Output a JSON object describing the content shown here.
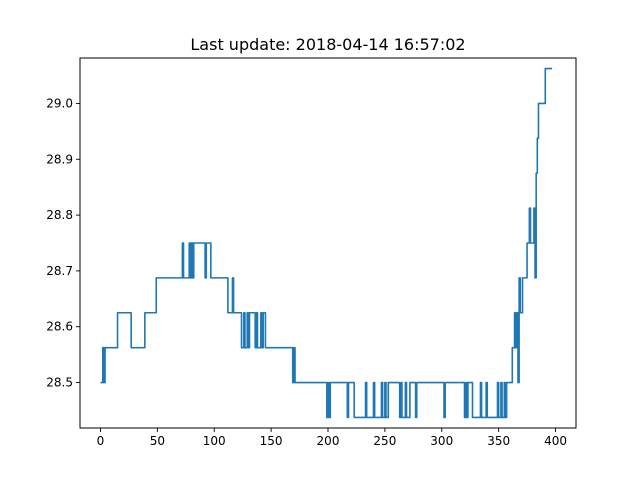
{
  "chart_data": {
    "type": "line",
    "title": "Last update: 2018-04-14 16:57:02",
    "xlabel": "",
    "ylabel": "",
    "xlim": [
      -18,
      418
    ],
    "ylim": [
      28.4185,
      29.0815
    ],
    "xticks": [
      0,
      50,
      100,
      150,
      200,
      250,
      300,
      350,
      400
    ],
    "yticks": [
      28.5,
      28.6,
      28.7,
      28.8,
      28.9,
      29.0
    ],
    "ytick_labels": [
      "28.5",
      "28.6",
      "28.7",
      "28.8",
      "28.9",
      "29.0"
    ],
    "grid": false,
    "series": [
      {
        "color": "#1f77b4",
        "points": [
          [
            0,
            28.5
          ],
          [
            2,
            28.5
          ],
          [
            2,
            28.5625
          ],
          [
            3,
            28.5625
          ],
          [
            3,
            28.5
          ],
          [
            4,
            28.5
          ],
          [
            4,
            28.5625
          ],
          [
            15,
            28.5625
          ],
          [
            15,
            28.625
          ],
          [
            27,
            28.625
          ],
          [
            27,
            28.5625
          ],
          [
            39,
            28.5625
          ],
          [
            39,
            28.625
          ],
          [
            49,
            28.625
          ],
          [
            49,
            28.6875
          ],
          [
            72,
            28.6875
          ],
          [
            72,
            28.75
          ],
          [
            73,
            28.75
          ],
          [
            73,
            28.6875
          ],
          [
            78,
            28.6875
          ],
          [
            78,
            28.75
          ],
          [
            79,
            28.75
          ],
          [
            79,
            28.6875
          ],
          [
            80,
            28.6875
          ],
          [
            80,
            28.75
          ],
          [
            81,
            28.75
          ],
          [
            81,
            28.6875
          ],
          [
            82,
            28.6875
          ],
          [
            82,
            28.75
          ],
          [
            92,
            28.75
          ],
          [
            92,
            28.6875
          ],
          [
            93,
            28.6875
          ],
          [
            93,
            28.75
          ],
          [
            97,
            28.75
          ],
          [
            97,
            28.6875
          ],
          [
            112,
            28.6875
          ],
          [
            112,
            28.625
          ],
          [
            116,
            28.625
          ],
          [
            116,
            28.6875
          ],
          [
            117,
            28.6875
          ],
          [
            117,
            28.625
          ],
          [
            124,
            28.625
          ],
          [
            124,
            28.5625
          ],
          [
            126,
            28.5625
          ],
          [
            126,
            28.625
          ],
          [
            127,
            28.625
          ],
          [
            127,
            28.5625
          ],
          [
            129,
            28.5625
          ],
          [
            129,
            28.625
          ],
          [
            130,
            28.625
          ],
          [
            130,
            28.5625
          ],
          [
            131,
            28.5625
          ],
          [
            131,
            28.625
          ],
          [
            136,
            28.625
          ],
          [
            136,
            28.5625
          ],
          [
            137,
            28.5625
          ],
          [
            137,
            28.625
          ],
          [
            138,
            28.625
          ],
          [
            138,
            28.5625
          ],
          [
            141,
            28.5625
          ],
          [
            141,
            28.625
          ],
          [
            142,
            28.625
          ],
          [
            142,
            28.5625
          ],
          [
            143,
            28.5625
          ],
          [
            143,
            28.625
          ],
          [
            145,
            28.625
          ],
          [
            145,
            28.5625
          ],
          [
            169,
            28.5625
          ],
          [
            169,
            28.5
          ],
          [
            170,
            28.5
          ],
          [
            170,
            28.5625
          ],
          [
            171,
            28.5625
          ],
          [
            171,
            28.5
          ],
          [
            199,
            28.5
          ],
          [
            199,
            28.4375
          ],
          [
            200,
            28.4375
          ],
          [
            200,
            28.5
          ],
          [
            201,
            28.5
          ],
          [
            201,
            28.4375
          ],
          [
            202,
            28.4375
          ],
          [
            202,
            28.5
          ],
          [
            217,
            28.5
          ],
          [
            217,
            28.4375
          ],
          [
            218,
            28.4375
          ],
          [
            218,
            28.5
          ],
          [
            223,
            28.5
          ],
          [
            223,
            28.4375
          ],
          [
            233,
            28.4375
          ],
          [
            233,
            28.5
          ],
          [
            234,
            28.5
          ],
          [
            234,
            28.4375
          ],
          [
            240,
            28.4375
          ],
          [
            240,
            28.5
          ],
          [
            241,
            28.5
          ],
          [
            241,
            28.4375
          ],
          [
            247,
            28.4375
          ],
          [
            247,
            28.5
          ],
          [
            248,
            28.5
          ],
          [
            248,
            28.4375
          ],
          [
            250,
            28.4375
          ],
          [
            250,
            28.5
          ],
          [
            251,
            28.5
          ],
          [
            251,
            28.4375
          ],
          [
            253,
            28.4375
          ],
          [
            253,
            28.5
          ],
          [
            263,
            28.5
          ],
          [
            263,
            28.4375
          ],
          [
            264,
            28.4375
          ],
          [
            264,
            28.5
          ],
          [
            265,
            28.5
          ],
          [
            265,
            28.4375
          ],
          [
            268,
            28.4375
          ],
          [
            268,
            28.5
          ],
          [
            269,
            28.5
          ],
          [
            269,
            28.4375
          ],
          [
            272,
            28.4375
          ],
          [
            272,
            28.5
          ],
          [
            277,
            28.5
          ],
          [
            277,
            28.4375
          ],
          [
            278,
            28.4375
          ],
          [
            278,
            28.5
          ],
          [
            302,
            28.5
          ],
          [
            302,
            28.4375
          ],
          [
            303,
            28.4375
          ],
          [
            303,
            28.5
          ],
          [
            320,
            28.5
          ],
          [
            320,
            28.4375
          ],
          [
            321,
            28.4375
          ],
          [
            321,
            28.5
          ],
          [
            322,
            28.5
          ],
          [
            322,
            28.4375
          ],
          [
            323,
            28.4375
          ],
          [
            323,
            28.5
          ],
          [
            327,
            28.5
          ],
          [
            327,
            28.4375
          ],
          [
            334,
            28.4375
          ],
          [
            334,
            28.5
          ],
          [
            335,
            28.5
          ],
          [
            335,
            28.4375
          ],
          [
            339,
            28.4375
          ],
          [
            339,
            28.5
          ],
          [
            340,
            28.5
          ],
          [
            340,
            28.4375
          ],
          [
            349,
            28.4375
          ],
          [
            349,
            28.5
          ],
          [
            350,
            28.5
          ],
          [
            350,
            28.4375
          ],
          [
            352,
            28.4375
          ],
          [
            352,
            28.5
          ],
          [
            353,
            28.5
          ],
          [
            353,
            28.4375
          ],
          [
            355,
            28.4375
          ],
          [
            355,
            28.5
          ],
          [
            356,
            28.5
          ],
          [
            356,
            28.4375
          ],
          [
            357,
            28.4375
          ],
          [
            357,
            28.5
          ],
          [
            362,
            28.5
          ],
          [
            362,
            28.5625
          ],
          [
            364,
            28.5625
          ],
          [
            364,
            28.625
          ],
          [
            365,
            28.625
          ],
          [
            365,
            28.5625
          ],
          [
            366,
            28.5625
          ],
          [
            366,
            28.625
          ],
          [
            367,
            28.625
          ],
          [
            367,
            28.5
          ],
          [
            368,
            28.5
          ],
          [
            368,
            28.6875
          ],
          [
            369,
            28.6875
          ],
          [
            369,
            28.625
          ],
          [
            371,
            28.625
          ],
          [
            371,
            28.6875
          ],
          [
            375,
            28.6875
          ],
          [
            375,
            28.75
          ],
          [
            377,
            28.75
          ],
          [
            377,
            28.8125
          ],
          [
            378,
            28.8125
          ],
          [
            378,
            28.75
          ],
          [
            381,
            28.75
          ],
          [
            381,
            28.8125
          ],
          [
            382,
            28.8125
          ],
          [
            382,
            28.6875
          ],
          [
            383,
            28.6875
          ],
          [
            383,
            28.875
          ],
          [
            384,
            28.875
          ],
          [
            384,
            28.9375
          ],
          [
            385,
            28.9375
          ],
          [
            385,
            29.0
          ],
          [
            391,
            29.0
          ],
          [
            391,
            29.0625
          ],
          [
            397,
            29.0625
          ]
        ]
      }
    ]
  }
}
